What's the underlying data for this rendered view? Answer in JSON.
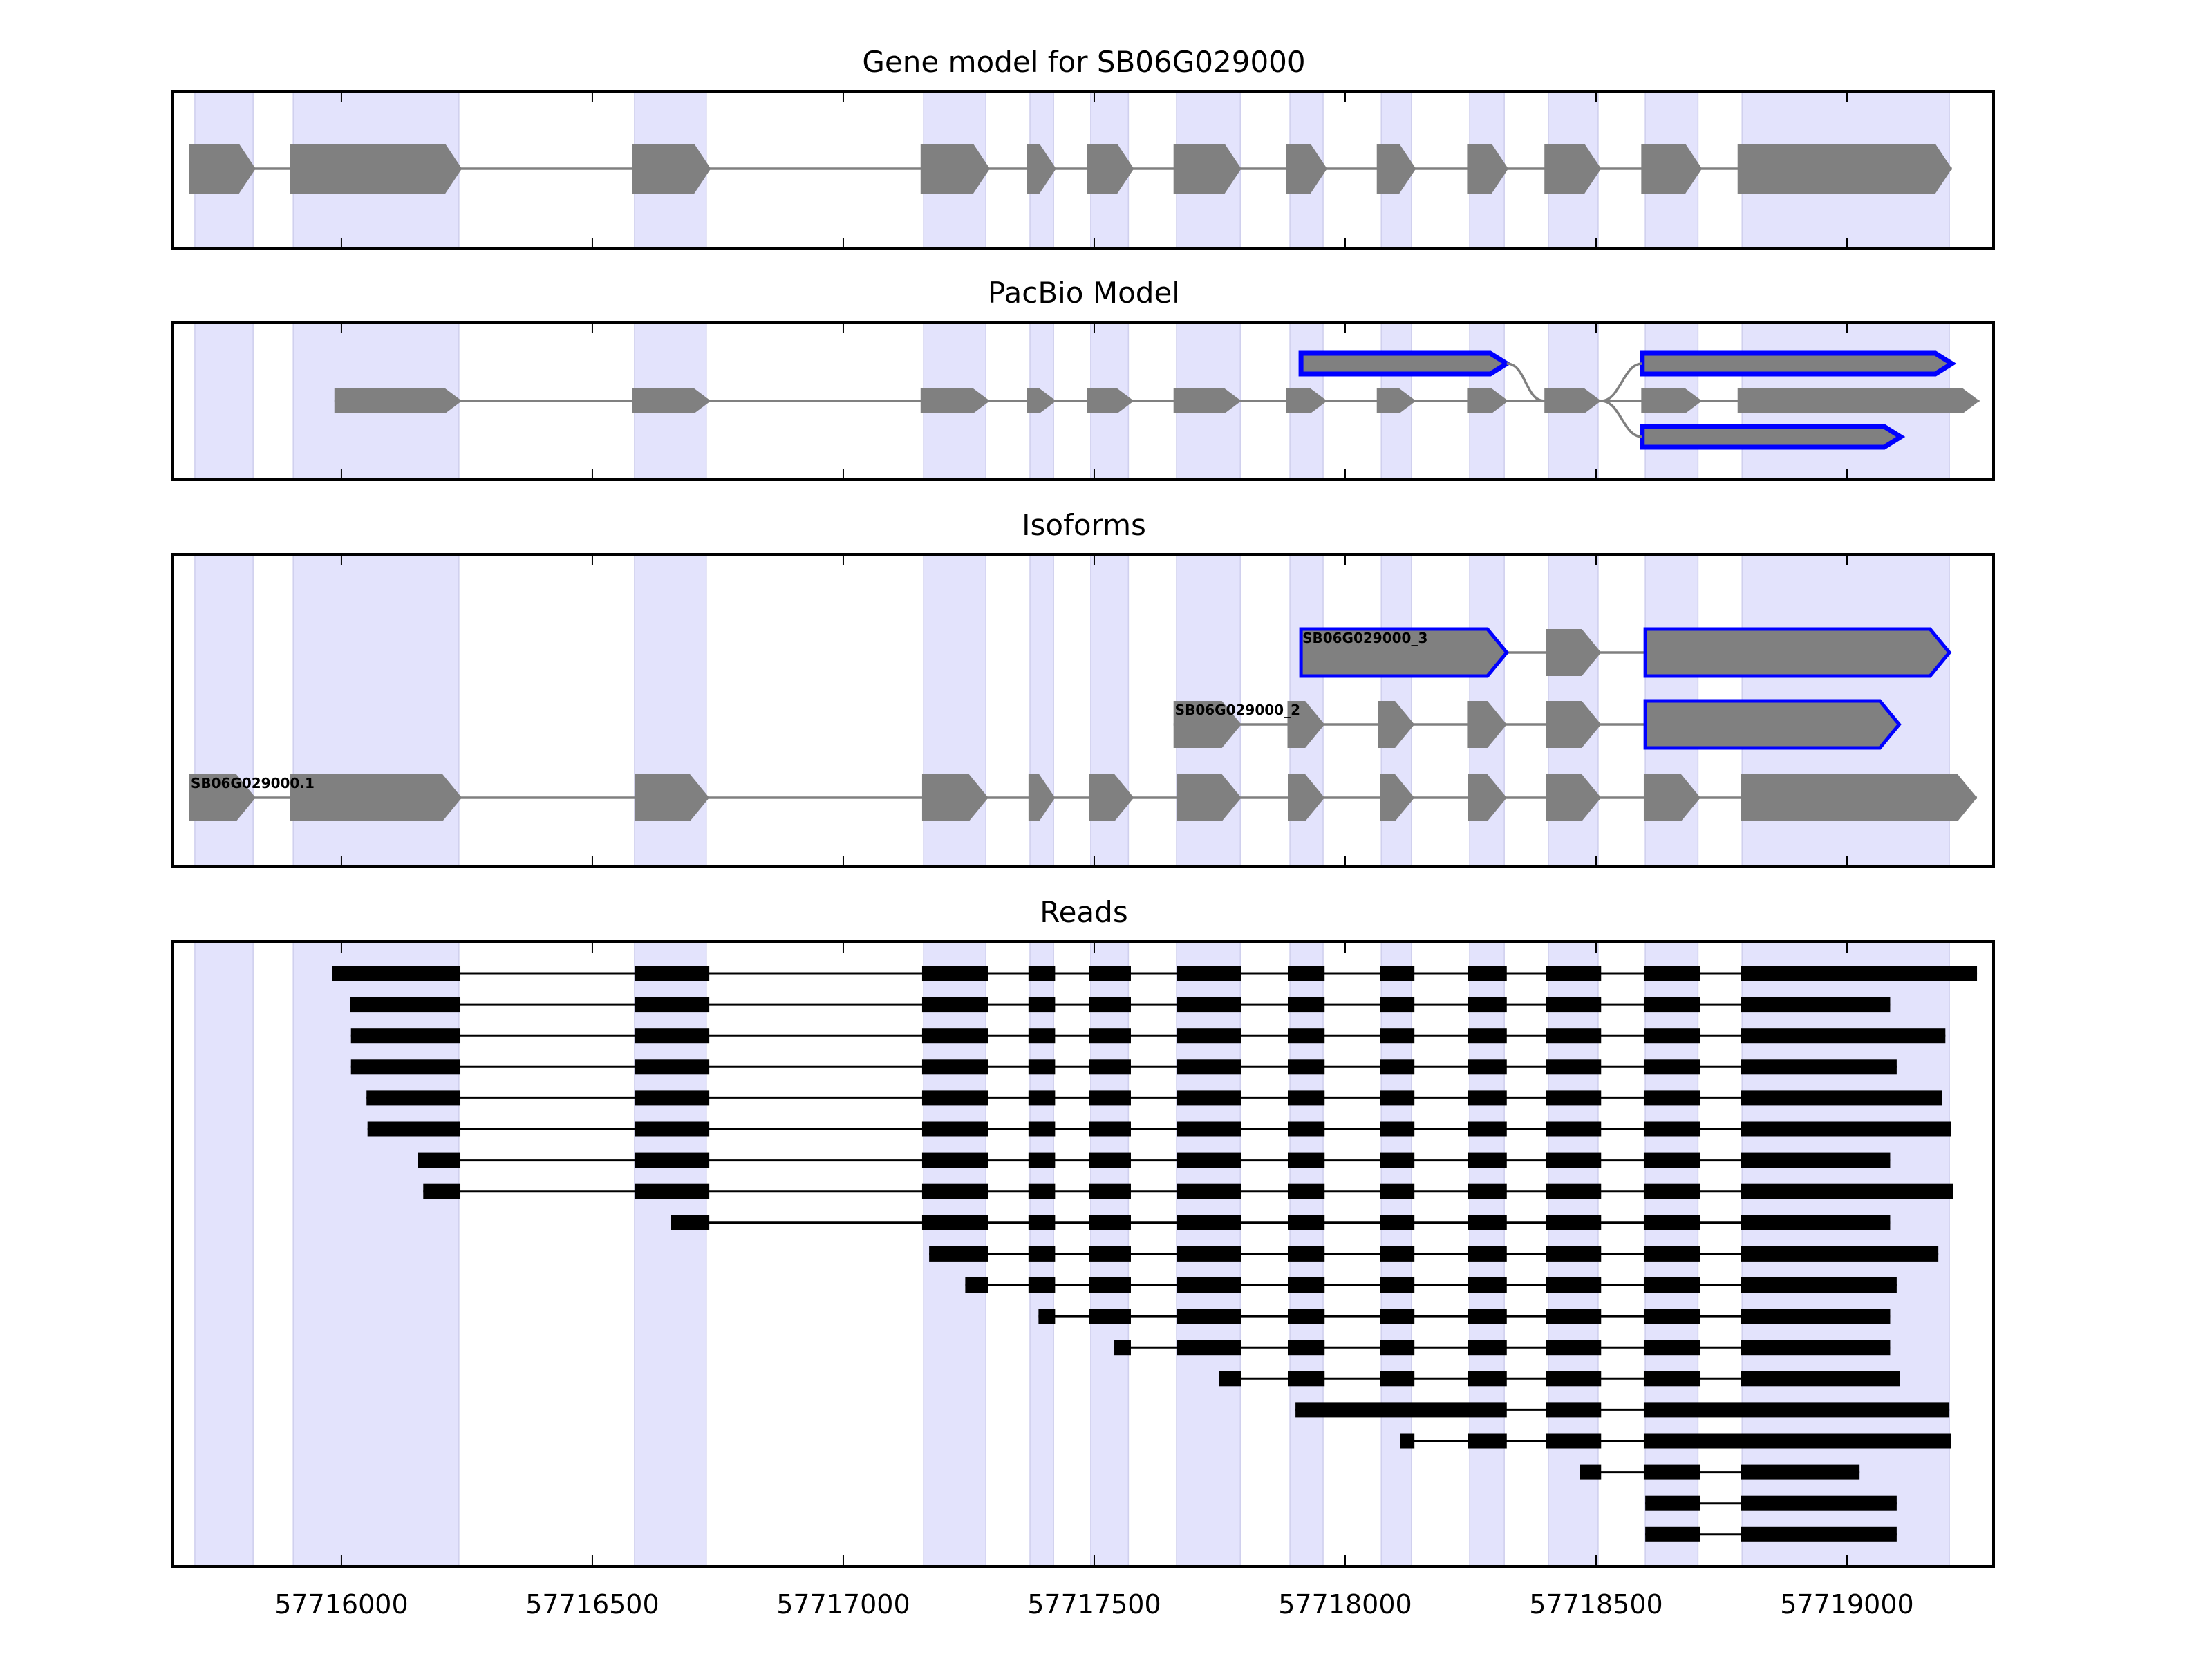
{
  "chart_data": {
    "type": "gene-structure",
    "xlim": [
      57715664,
      57719292
    ],
    "xticks": [
      57716000,
      57716500,
      57717000,
      57717500,
      57718000,
      57718500,
      57719000
    ],
    "colors": {
      "shade": "#e3e3fc",
      "exon": "#808080",
      "highlight": "#0000ff",
      "read": "#000000"
    },
    "shaded_regions": [
      [
        57715708,
        57715824
      ],
      [
        57715904,
        57716234
      ],
      [
        57716584,
        57716727
      ],
      [
        57717160,
        57717284
      ],
      [
        57717372,
        57717419
      ],
      [
        57717493,
        57717568
      ],
      [
        57717664,
        57717791
      ],
      [
        57717890,
        57717956
      ],
      [
        57718072,
        57718132
      ],
      [
        57718248,
        57718317
      ],
      [
        57718405,
        57718504
      ],
      [
        57718598,
        57718703
      ],
      [
        57718791,
        57719204
      ]
    ],
    "panels": [
      {
        "title": "Gene model for SB06G029000",
        "tracks": [
          {
            "exons": [
              [
                57715697,
                57715829
              ],
              [
                57715898,
                57716240
              ],
              [
                57716579,
                57716736
              ],
              [
                57717154,
                57717292
              ],
              [
                57717366,
                57717424
              ],
              [
                57717485,
                57717579
              ],
              [
                57717658,
                57717793
              ],
              [
                57717882,
                57717964
              ],
              [
                57718063,
                57718141
              ],
              [
                57718243,
                57718325
              ],
              [
                57718397,
                57718510
              ],
              [
                57718590,
                57718711
              ],
              [
                57718782,
                57719209
              ]
            ]
          }
        ]
      },
      {
        "title": "PacBio Model",
        "tracks": [
          {
            "row": "top",
            "exons": [
              [
                57717912,
                57718322,
                true
              ],
              [
                57718592,
                57719209,
                true
              ]
            ]
          },
          {
            "row": "middle",
            "exons": [
              [
                57715986,
                57716240
              ],
              [
                57716579,
                57716736
              ],
              [
                57717154,
                57717292
              ],
              [
                57717366,
                57717424
              ],
              [
                57717485,
                57717579
              ],
              [
                57717658,
                57717793
              ],
              [
                57717882,
                57717964
              ],
              [
                57718063,
                57718141
              ],
              [
                57718243,
                57718325
              ],
              [
                57718397,
                57718510
              ],
              [
                57718590,
                57718711
              ],
              [
                57718782,
                57719264
              ]
            ]
          },
          {
            "row": "bottom",
            "exons": [
              [
                57718592,
                57719107,
                true
              ]
            ]
          }
        ]
      },
      {
        "title": "Isoforms",
        "tracks": [
          {
            "label": "SB06G029000_3",
            "exons": [
              [
                57717912,
                57718322,
                true
              ],
              [
                57718400,
                57718510
              ],
              [
                57718598,
                57719204,
                true
              ]
            ]
          },
          {
            "label": "SB06G029000_2",
            "exons": [
              [
                57717658,
                57717793
              ],
              [
                57717885,
                57717959
              ],
              [
                57718066,
                57718138
              ],
              [
                57718243,
                57718322
              ],
              [
                57718400,
                57718510
              ],
              [
                57718598,
                57719104,
                true
              ]
            ]
          },
          {
            "label": "SB06G029000.1",
            "exons": [
              [
                57715697,
                57715829
              ],
              [
                57715898,
                57716240
              ],
              [
                57716584,
                57716733
              ],
              [
                57717157,
                57717289
              ],
              [
                57717369,
                57717422
              ],
              [
                57717490,
                57717579
              ],
              [
                57717664,
                57717793
              ],
              [
                57717887,
                57717959
              ],
              [
                57718069,
                57718138
              ],
              [
                57718245,
                57718322
              ],
              [
                57718400,
                57718510
              ],
              [
                57718595,
                57718708
              ],
              [
                57718788,
                57719259
              ]
            ]
          }
        ]
      },
      {
        "title": "Reads",
        "reads": [
          [
            [
              57715981,
              57716237
            ],
            [
              57716584,
              57716733
            ],
            [
              57717157,
              57717289
            ],
            [
              57717369,
              57717422
            ],
            [
              57717490,
              57717573
            ],
            [
              57717664,
              57717793
            ],
            [
              57717887,
              57717959
            ],
            [
              57718069,
              57718138
            ],
            [
              57718245,
              57718322
            ],
            [
              57718400,
              57718510
            ],
            [
              57718595,
              57718708
            ],
            [
              57718788,
              57719259
            ]
          ],
          [
            [
              57716017,
              57716237
            ],
            [
              57716584,
              57716733
            ],
            [
              57717157,
              57717289
            ],
            [
              57717369,
              57717422
            ],
            [
              57717490,
              57717573
            ],
            [
              57717664,
              57717793
            ],
            [
              57717887,
              57717959
            ],
            [
              57718069,
              57718138
            ],
            [
              57718245,
              57718322
            ],
            [
              57718400,
              57718510
            ],
            [
              57718595,
              57718708
            ],
            [
              57718788,
              57719086
            ]
          ],
          [
            [
              57716019,
              57716237
            ],
            [
              57716584,
              57716733
            ],
            [
              57717157,
              57717289
            ],
            [
              57717369,
              57717422
            ],
            [
              57717490,
              57717573
            ],
            [
              57717664,
              57717793
            ],
            [
              57717887,
              57717959
            ],
            [
              57718069,
              57718138
            ],
            [
              57718245,
              57718322
            ],
            [
              57718400,
              57718510
            ],
            [
              57718595,
              57718708
            ],
            [
              57718788,
              57719196
            ]
          ],
          [
            [
              57716019,
              57716237
            ],
            [
              57716584,
              57716733
            ],
            [
              57717157,
              57717289
            ],
            [
              57717369,
              57717422
            ],
            [
              57717490,
              57717573
            ],
            [
              57717664,
              57717793
            ],
            [
              57717887,
              57717959
            ],
            [
              57718069,
              57718138
            ],
            [
              57718245,
              57718322
            ],
            [
              57718400,
              57718510
            ],
            [
              57718595,
              57718708
            ],
            [
              57718788,
              57719099
            ]
          ],
          [
            [
              57716050,
              57716237
            ],
            [
              57716584,
              57716733
            ],
            [
              57717157,
              57717289
            ],
            [
              57717369,
              57717422
            ],
            [
              57717490,
              57717573
            ],
            [
              57717664,
              57717793
            ],
            [
              57717887,
              57717959
            ],
            [
              57718069,
              57718138
            ],
            [
              57718245,
              57718322
            ],
            [
              57718400,
              57718510
            ],
            [
              57718595,
              57718708
            ],
            [
              57718788,
              57719190
            ]
          ],
          [
            [
              57716052,
              57716237
            ],
            [
              57716584,
              57716733
            ],
            [
              57717157,
              57717289
            ],
            [
              57717369,
              57717422
            ],
            [
              57717490,
              57717573
            ],
            [
              57717664,
              57717793
            ],
            [
              57717887,
              57717959
            ],
            [
              57718069,
              57718138
            ],
            [
              57718245,
              57718322
            ],
            [
              57718400,
              57718510
            ],
            [
              57718595,
              57718708
            ],
            [
              57718788,
              57719207
            ]
          ],
          [
            [
              57716152,
              57716237
            ],
            [
              57716584,
              57716733
            ],
            [
              57717157,
              57717289
            ],
            [
              57717369,
              57717422
            ],
            [
              57717490,
              57717573
            ],
            [
              57717664,
              57717793
            ],
            [
              57717887,
              57717959
            ],
            [
              57718069,
              57718138
            ],
            [
              57718245,
              57718322
            ],
            [
              57718400,
              57718510
            ],
            [
              57718595,
              57718708
            ],
            [
              57718788,
              57719086
            ]
          ],
          [
            [
              57716163,
              57716237
            ],
            [
              57716584,
              57716733
            ],
            [
              57717157,
              57717289
            ],
            [
              57717369,
              57717422
            ],
            [
              57717490,
              57717573
            ],
            [
              57717664,
              57717793
            ],
            [
              57717887,
              57717959
            ],
            [
              57718069,
              57718138
            ],
            [
              57718245,
              57718322
            ],
            [
              57718400,
              57718510
            ],
            [
              57718595,
              57718708
            ],
            [
              57718788,
              57719212
            ]
          ],
          [
            [
              57716656,
              57716733
            ],
            [
              57717157,
              57717289
            ],
            [
              57717369,
              57717422
            ],
            [
              57717490,
              57717573
            ],
            [
              57717664,
              57717793
            ],
            [
              57717887,
              57717959
            ],
            [
              57718069,
              57718138
            ],
            [
              57718245,
              57718322
            ],
            [
              57718400,
              57718510
            ],
            [
              57718595,
              57718708
            ],
            [
              57718788,
              57719086
            ]
          ],
          [
            [
              57717171,
              57717289
            ],
            [
              57717369,
              57717422
            ],
            [
              57717490,
              57717573
            ],
            [
              57717664,
              57717793
            ],
            [
              57717887,
              57717959
            ],
            [
              57718069,
              57718138
            ],
            [
              57718245,
              57718322
            ],
            [
              57718400,
              57718510
            ],
            [
              57718595,
              57718708
            ],
            [
              57718788,
              57719182
            ]
          ],
          [
            [
              57717243,
              57717289
            ],
            [
              57717369,
              57717422
            ],
            [
              57717490,
              57717573
            ],
            [
              57717664,
              57717793
            ],
            [
              57717887,
              57717959
            ],
            [
              57718069,
              57718138
            ],
            [
              57718245,
              57718322
            ],
            [
              57718400,
              57718510
            ],
            [
              57718595,
              57718708
            ],
            [
              57718788,
              57719099
            ]
          ],
          [
            [
              57717389,
              57717422
            ],
            [
              57717490,
              57717573
            ],
            [
              57717664,
              57717793
            ],
            [
              57717887,
              57717959
            ],
            [
              57718069,
              57718138
            ],
            [
              57718245,
              57718322
            ],
            [
              57718400,
              57718510
            ],
            [
              57718595,
              57718708
            ],
            [
              57718788,
              57719086
            ]
          ],
          [
            [
              57717540,
              57717573
            ],
            [
              57717664,
              57717793
            ],
            [
              57717887,
              57717959
            ],
            [
              57718069,
              57718138
            ],
            [
              57718245,
              57718322
            ],
            [
              57718400,
              57718510
            ],
            [
              57718595,
              57718708
            ],
            [
              57718788,
              57719086
            ]
          ],
          [
            [
              57717749,
              57717793
            ],
            [
              57717887,
              57717959
            ],
            [
              57718069,
              57718138
            ],
            [
              57718245,
              57718322
            ],
            [
              57718400,
              57718510
            ],
            [
              57718595,
              57718708
            ],
            [
              57718788,
              57719105
            ]
          ],
          [
            [
              57717901,
              57718322
            ],
            [
              57718400,
              57718510
            ],
            [
              57718595,
              57719204
            ]
          ],
          [
            [
              57718110,
              57718138
            ],
            [
              57718245,
              57718322
            ],
            [
              57718400,
              57718510
            ],
            [
              57718595,
              57719207
            ]
          ],
          [
            [
              57718468,
              57718510
            ],
            [
              57718595,
              57718708
            ],
            [
              57718788,
              57719025
            ]
          ],
          [
            [
              57718598,
              57718708
            ],
            [
              57718788,
              57719099
            ]
          ],
          [
            [
              57718598,
              57718708
            ],
            [
              57718788,
              57719099
            ]
          ]
        ]
      }
    ]
  }
}
